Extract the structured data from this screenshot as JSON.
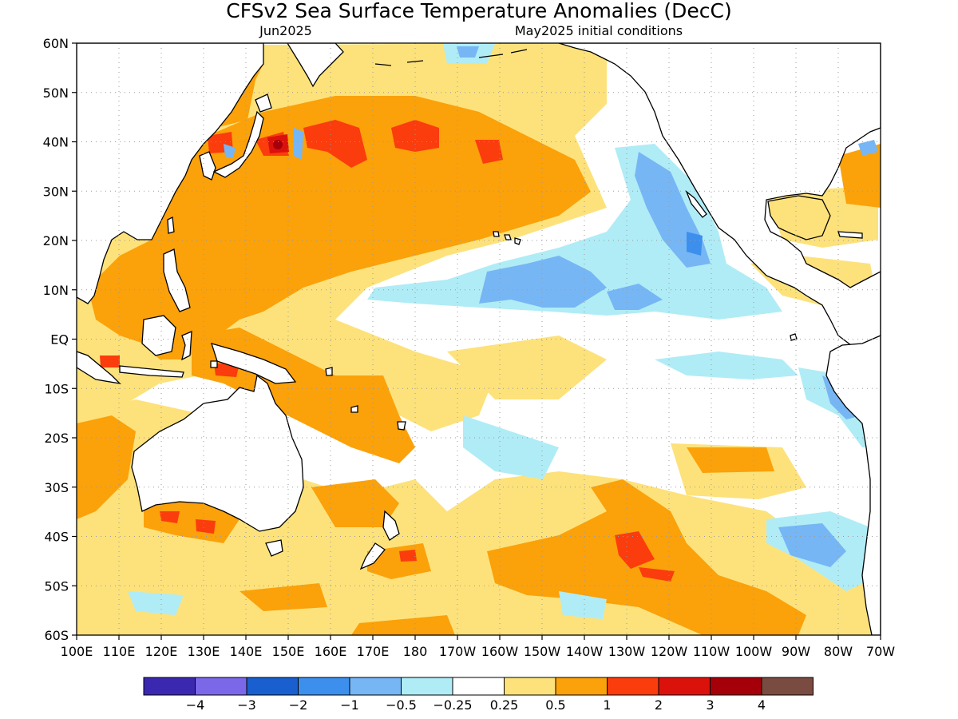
{
  "title": "CFSv2 Sea Surface Temperature Anomalies (DecC)",
  "subtitle_left": "Jun2025",
  "subtitle_right": "May2025 initial conditions",
  "lat_labels": [
    "60N",
    "50N",
    "40N",
    "30N",
    "20N",
    "10N",
    "EQ",
    "10S",
    "20S",
    "30S",
    "40S",
    "50S",
    "60S"
  ],
  "lon_labels": [
    "100E",
    "110E",
    "120E",
    "130E",
    "140E",
    "150E",
    "160E",
    "170E",
    "180",
    "170W",
    "160W",
    "150W",
    "140W",
    "130W",
    "120W",
    "110W",
    "100W",
    "90W",
    "80W",
    "70W"
  ],
  "colorbar": {
    "colors": [
      "#3b28b0",
      "#7b68e8",
      "#1a5fcf",
      "#3d8fee",
      "#77b6f4",
      "#b0ecf6",
      "#ffffff",
      "#fde27b",
      "#fba10a",
      "#fb3c0d",
      "#db120c",
      "#a5000a",
      "#7a4b40"
    ],
    "labels": [
      "−4",
      "−3",
      "−2",
      "−1",
      "−0.5",
      "−0.25",
      "0.25",
      "0.5",
      "1",
      "2",
      "3",
      "4"
    ]
  },
  "map_colors": {
    "ocean_neutral": "#ffffff",
    "land": "#ffffff",
    "coast": "#000000",
    "grid": "#9a9a9a"
  }
}
